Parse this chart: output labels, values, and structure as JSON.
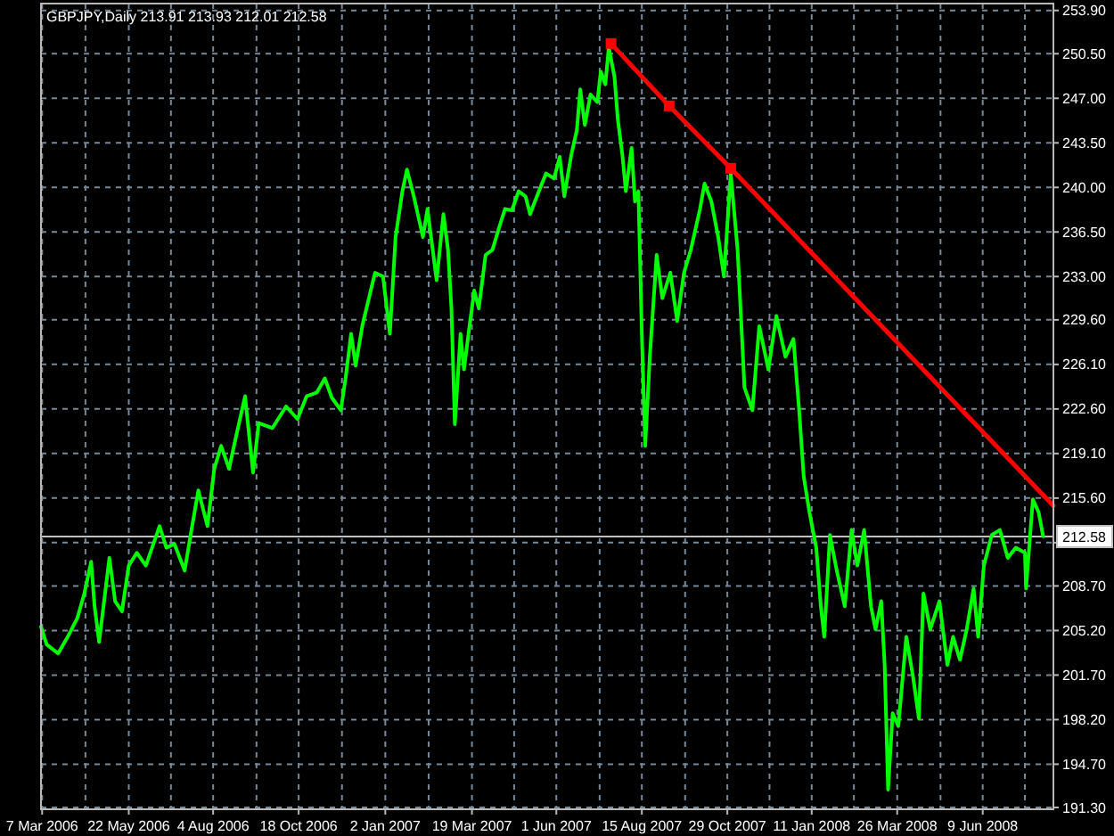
{
  "chart_data": {
    "type": "line",
    "title": "GBPJPY,Daily 213.91 213.93 212.01 212.58",
    "x": [
      "2006-03-06",
      "2006-03-11",
      "2006-03-21",
      "2006-03-30",
      "2006-04-07",
      "2006-04-13",
      "2006-04-19",
      "2006-04-22",
      "2006-04-26",
      "2006-05-05",
      "2006-05-10",
      "2006-05-16",
      "2006-05-22",
      "2006-05-29",
      "2006-06-06",
      "2006-06-18",
      "2006-06-24",
      "2006-07-01",
      "2006-07-10",
      "2006-07-16",
      "2006-07-22",
      "2006-07-30",
      "2006-08-05",
      "2006-08-11",
      "2006-08-18",
      "2006-08-23",
      "2006-09-01",
      "2006-09-08",
      "2006-09-13",
      "2006-09-25",
      "2006-10-07",
      "2006-10-17",
      "2006-10-25",
      "2006-11-03",
      "2006-11-10",
      "2006-11-16",
      "2006-11-24",
      "2006-11-28",
      "2006-12-03",
      "2006-12-07",
      "2006-12-13",
      "2006-12-24",
      "2006-12-31",
      "2007-01-06",
      "2007-01-11",
      "2007-01-17",
      "2007-01-21",
      "2007-01-27",
      "2007-02-04",
      "2007-02-08",
      "2007-02-16",
      "2007-02-22",
      "2007-02-26",
      "2007-03-01",
      "2007-03-04",
      "2007-03-09",
      "2007-03-12",
      "2007-03-16",
      "2007-03-21",
      "2007-03-25",
      "2007-03-31",
      "2007-04-06",
      "2007-04-12",
      "2007-04-17",
      "2007-04-23",
      "2007-04-29",
      "2007-05-05",
      "2007-05-09",
      "2007-05-15",
      "2007-05-23",
      "2007-05-30",
      "2007-06-04",
      "2007-06-08",
      "2007-06-14",
      "2007-06-19",
      "2007-06-22",
      "2007-06-26",
      "2007-07-01",
      "2007-07-07",
      "2007-07-10",
      "2007-07-14",
      "2007-07-17",
      "2007-07-22",
      "2007-07-25",
      "2007-07-29",
      "2007-08-01",
      "2007-08-06",
      "2007-08-09",
      "2007-08-12",
      "2007-08-15",
      "2007-08-18",
      "2007-08-22",
      "2007-08-28",
      "2007-09-02",
      "2007-09-09",
      "2007-09-15",
      "2007-09-21",
      "2007-09-27",
      "2007-10-05",
      "2007-10-09",
      "2007-10-15",
      "2007-10-21",
      "2007-10-26",
      "2007-11-01",
      "2007-11-07",
      "2007-11-11",
      "2007-11-13",
      "2007-11-20",
      "2007-11-26",
      "2007-12-04",
      "2007-12-11",
      "2007-12-19",
      "2007-12-26",
      "2007-12-31",
      "2008-01-04",
      "2008-01-09",
      "2008-01-15",
      "2008-01-19",
      "2008-01-22",
      "2008-01-27",
      "2008-02-02",
      "2008-02-09",
      "2008-02-15",
      "2008-02-20",
      "2008-02-26",
      "2008-03-03",
      "2008-03-07",
      "2008-03-12",
      "2008-03-15",
      "2008-03-18",
      "2008-03-22",
      "2008-03-27",
      "2008-04-03",
      "2008-04-09",
      "2008-04-14",
      "2008-04-18",
      "2008-04-24",
      "2008-05-02",
      "2008-05-09",
      "2008-05-14",
      "2008-05-20",
      "2008-05-26",
      "2008-06-01",
      "2008-06-05",
      "2008-06-10",
      "2008-06-17",
      "2008-06-24",
      "2008-07-01",
      "2008-07-08",
      "2008-07-16",
      "2008-07-17",
      "2008-07-23",
      "2008-07-28",
      "2008-08-01"
    ],
    "series": [
      {
        "color": "#00ff00",
        "values": [
          205.5,
          204.1,
          203.4,
          204.8,
          206.2,
          208.1,
          210.6,
          207.1,
          204.3,
          210.9,
          207.5,
          206.7,
          210.3,
          211.3,
          210.3,
          213.4,
          211.7,
          212.0,
          209.9,
          213.1,
          216.2,
          213.4,
          217.9,
          219.7,
          217.9,
          220.0,
          223.6,
          217.6,
          221.5,
          221.1,
          222.8,
          221.8,
          223.6,
          223.9,
          225.0,
          223.5,
          222.5,
          224.9,
          228.5,
          226.0,
          229.2,
          233.3,
          233.0,
          228.5,
          236.1,
          239.7,
          241.4,
          239.3,
          236.1,
          238.3,
          232.7,
          237.9,
          235.1,
          230.5,
          221.4,
          228.5,
          225.7,
          228.5,
          231.9,
          230.5,
          234.7,
          235.1,
          236.9,
          238.3,
          238.2,
          239.7,
          239.3,
          237.9,
          239.3,
          241.1,
          240.7,
          242.4,
          239.3,
          242.5,
          244.5,
          247.7,
          244.9,
          247.3,
          246.7,
          249.1,
          248.1,
          251.0,
          248.7,
          245.3,
          242.5,
          239.7,
          243.1,
          238.9,
          239.7,
          228.5,
          219.7,
          226.7,
          234.7,
          231.3,
          233.3,
          229.5,
          233.3,
          235.1,
          238.3,
          240.3,
          238.9,
          236.1,
          233.0,
          241.1,
          235.1,
          228.0,
          224.3,
          222.5,
          229.1,
          225.7,
          229.9,
          226.7,
          228.1,
          222.5,
          217.3,
          214.5,
          211.7,
          207.1,
          204.7,
          212.7,
          209.9,
          207.1,
          213.1,
          210.3,
          213.1,
          207.1,
          205.3,
          207.5,
          202.5,
          192.7,
          198.7,
          197.7,
          204.7,
          201.5,
          198.3,
          208.1,
          205.3,
          207.5,
          202.5,
          204.7,
          202.9,
          205.3,
          208.5,
          204.7,
          210.3,
          212.7,
          213.1,
          210.9,
          211.7,
          211.3,
          208.5,
          215.5,
          214.5,
          212.6
        ]
      },
      {
        "type": "line",
        "color": "#ff0000",
        "x": [
          "2007-07-19",
          "2007-09-08",
          "2007-11-01",
          "2008-08-10"
        ],
        "values": [
          251.3,
          246.4,
          241.5,
          215.0
        ]
      },
      {
        "type": "scatter",
        "color": "#ff0000",
        "marker": "square",
        "x": [
          "2007-07-19",
          "2007-09-08",
          "2007-11-01"
        ],
        "values": [
          251.3,
          246.4,
          241.5
        ]
      }
    ],
    "xlim": [
      "2006-03-06",
      "2008-08-10"
    ],
    "xticks": [
      {
        "value": "2006-03-07",
        "label": "7 Mar 2006"
      },
      {
        "value": "2006-04-14",
        "label": null
      },
      {
        "value": "2006-05-22",
        "label": "22 May 2006"
      },
      {
        "value": "2006-06-28",
        "label": null
      },
      {
        "value": "2006-08-04",
        "label": "4 Aug 2006"
      },
      {
        "value": "2006-09-11",
        "label": null
      },
      {
        "value": "2006-10-18",
        "label": "18 Oct 2006"
      },
      {
        "value": "2006-11-25",
        "label": null
      },
      {
        "value": "2007-01-02",
        "label": "2 Jan 2007"
      },
      {
        "value": "2007-02-09",
        "label": null
      },
      {
        "value": "2007-03-19",
        "label": "19 Mar 2007"
      },
      {
        "value": "2007-04-25",
        "label": null
      },
      {
        "value": "2007-06-01",
        "label": "1 Jun 2007"
      },
      {
        "value": "2007-07-09",
        "label": null
      },
      {
        "value": "2007-08-15",
        "label": "15 Aug 2007"
      },
      {
        "value": "2007-09-22",
        "label": null
      },
      {
        "value": "2007-10-29",
        "label": "29 Oct 2007"
      },
      {
        "value": "2007-12-05",
        "label": null
      },
      {
        "value": "2008-01-11",
        "label": "11 Jan 2008"
      },
      {
        "value": "2008-02-17",
        "label": null
      },
      {
        "value": "2008-03-26",
        "label": "26 Mar 2008"
      },
      {
        "value": "2008-05-03",
        "label": null
      },
      {
        "value": "2008-06-09",
        "label": "9 Jun 2008"
      },
      {
        "value": "2008-07-16",
        "label": null
      }
    ],
    "ylim": [
      191.16,
      254.44
    ],
    "yticks": [
      {
        "value": 191.3,
        "label": "191.30"
      },
      {
        "value": 194.7,
        "label": "194.70"
      },
      {
        "value": 198.2,
        "label": "198.20"
      },
      {
        "value": 201.7,
        "label": "201.70"
      },
      {
        "value": 205.2,
        "label": "205.20"
      },
      {
        "value": 208.7,
        "label": "208.70"
      },
      {
        "value": 212.1,
        "label": null
      },
      {
        "value": 215.6,
        "label": "215.60"
      },
      {
        "value": 219.1,
        "label": "219.10"
      },
      {
        "value": 222.6,
        "label": "222.60"
      },
      {
        "value": 226.1,
        "label": "226.10"
      },
      {
        "value": 229.6,
        "label": "229.60"
      },
      {
        "value": 233.0,
        "label": "233.00"
      },
      {
        "value": 236.5,
        "label": "236.50"
      },
      {
        "value": 240.0,
        "label": "240.00"
      },
      {
        "value": 243.5,
        "label": "243.50"
      },
      {
        "value": 247.0,
        "label": "247.00"
      },
      {
        "value": 250.5,
        "label": "250.50"
      },
      {
        "value": 253.9,
        "label": "253.90"
      }
    ],
    "grid": true,
    "ref_lines": [
      {
        "axis": "y",
        "value": 212.58,
        "label": "212.58",
        "color": "#c0c0c0"
      }
    ]
  }
}
